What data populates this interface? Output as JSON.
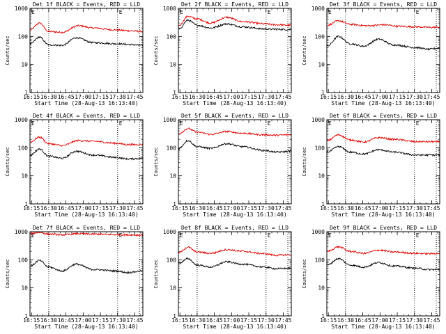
{
  "chart_data": {
    "type": "line",
    "y_scale": "log",
    "ylim": [
      1,
      1000
    ],
    "y_ticks": [
      "1",
      "10",
      "100",
      "1000"
    ],
    "x_tick_labels": [
      "16:15",
      "16:30",
      "16:45",
      "17:00",
      "17:15",
      "17:30",
      "17:45"
    ],
    "x_range": [
      "16:13:40",
      "17:52:00"
    ],
    "xlabel": "Start Time (28-Aug-13 16:13:40)",
    "ylabel": "Counts/sec",
    "marker_label": "E",
    "vertical_lines": [
      "16:30",
      "17:30",
      "17:49"
    ],
    "series_colors": {
      "events": "#000000",
      "lld": "#e00000"
    },
    "panels": [
      {
        "title": "Det 1f BLACK = Events, RED = LLD",
        "events": [
          [
            0,
            55
          ],
          [
            8,
            95
          ],
          [
            16,
            50
          ],
          [
            28,
            48
          ],
          [
            40,
            90
          ],
          [
            55,
            60
          ],
          [
            75,
            55
          ],
          [
            85,
            52
          ],
          [
            98,
            48
          ]
        ],
        "lld": [
          [
            0,
            170
          ],
          [
            8,
            300
          ],
          [
            16,
            150
          ],
          [
            28,
            140
          ],
          [
            42,
            240
          ],
          [
            55,
            200
          ],
          [
            75,
            170
          ],
          [
            85,
            160
          ],
          [
            98,
            150
          ]
        ]
      },
      {
        "title": "Det 2f BLACK = Events, RED = LLD",
        "events": [
          [
            0,
            180
          ],
          [
            8,
            380
          ],
          [
            16,
            250
          ],
          [
            28,
            200
          ],
          [
            42,
            280
          ],
          [
            55,
            220
          ],
          [
            75,
            185
          ],
          [
            85,
            180
          ],
          [
            98,
            175
          ]
        ],
        "lld": [
          [
            0,
            240
          ],
          [
            8,
            520
          ],
          [
            16,
            420
          ],
          [
            28,
            300
          ],
          [
            42,
            480
          ],
          [
            55,
            340
          ],
          [
            75,
            280
          ],
          [
            85,
            260
          ],
          [
            98,
            250
          ]
        ]
      },
      {
        "title": "Det 3f BLACK = Events, RED = LLD",
        "events": [
          [
            0,
            45
          ],
          [
            10,
            100
          ],
          [
            20,
            55
          ],
          [
            32,
            45
          ],
          [
            45,
            80
          ],
          [
            58,
            50
          ],
          [
            78,
            40
          ],
          [
            88,
            35
          ],
          [
            98,
            38
          ]
        ],
        "lld": [
          [
            0,
            250
          ],
          [
            10,
            360
          ],
          [
            20,
            270
          ],
          [
            35,
            240
          ],
          [
            50,
            260
          ],
          [
            62,
            230
          ],
          [
            78,
            220
          ],
          [
            90,
            210
          ],
          [
            98,
            215
          ]
        ]
      },
      {
        "title": "Det 4f BLACK = Events, RED = LLD",
        "events": [
          [
            0,
            55
          ],
          [
            8,
            90
          ],
          [
            16,
            50
          ],
          [
            28,
            42
          ],
          [
            40,
            75
          ],
          [
            55,
            55
          ],
          [
            75,
            45
          ],
          [
            85,
            40
          ],
          [
            98,
            42
          ]
        ],
        "lld": [
          [
            0,
            160
          ],
          [
            8,
            240
          ],
          [
            16,
            140
          ],
          [
            28,
            120
          ],
          [
            42,
            180
          ],
          [
            55,
            170
          ],
          [
            75,
            145
          ],
          [
            85,
            130
          ],
          [
            98,
            130
          ]
        ]
      },
      {
        "title": "Det 5f BLACK = Events, RED = LLD",
        "events": [
          [
            0,
            95
          ],
          [
            8,
            180
          ],
          [
            16,
            110
          ],
          [
            28,
            95
          ],
          [
            42,
            140
          ],
          [
            55,
            110
          ],
          [
            75,
            80
          ],
          [
            85,
            70
          ],
          [
            98,
            75
          ]
        ],
        "lld": [
          [
            0,
            320
          ],
          [
            8,
            480
          ],
          [
            16,
            360
          ],
          [
            28,
            300
          ],
          [
            42,
            380
          ],
          [
            55,
            330
          ],
          [
            75,
            290
          ],
          [
            85,
            280
          ],
          [
            98,
            290
          ]
        ]
      },
      {
        "title": "Det 6f BLACK = Events, RED = LLD",
        "events": [
          [
            0,
            70
          ],
          [
            10,
            110
          ],
          [
            20,
            70
          ],
          [
            32,
            60
          ],
          [
            45,
            85
          ],
          [
            58,
            70
          ],
          [
            78,
            55
          ],
          [
            88,
            55
          ],
          [
            98,
            55
          ]
        ],
        "lld": [
          [
            0,
            180
          ],
          [
            10,
            290
          ],
          [
            20,
            190
          ],
          [
            32,
            160
          ],
          [
            45,
            230
          ],
          [
            58,
            200
          ],
          [
            78,
            165
          ],
          [
            88,
            165
          ],
          [
            98,
            165
          ]
        ]
      },
      {
        "title": "Det 7f BLACK = Events, RED = LLD",
        "events": [
          [
            0,
            60
          ],
          [
            8,
            95
          ],
          [
            16,
            55
          ],
          [
            28,
            40
          ],
          [
            40,
            70
          ],
          [
            55,
            45
          ],
          [
            75,
            40
          ],
          [
            85,
            35
          ],
          [
            98,
            40
          ]
        ],
        "lld": [
          [
            0,
            850
          ],
          [
            8,
            950
          ],
          [
            16,
            820
          ],
          [
            28,
            780
          ],
          [
            42,
            850
          ],
          [
            55,
            820
          ],
          [
            75,
            790
          ],
          [
            85,
            770
          ],
          [
            98,
            760
          ]
        ]
      },
      {
        "title": "Det 8f BLACK = Events, RED = LLD",
        "events": [
          [
            0,
            75
          ],
          [
            8,
            110
          ],
          [
            16,
            65
          ],
          [
            28,
            55
          ],
          [
            42,
            85
          ],
          [
            55,
            70
          ],
          [
            75,
            55
          ],
          [
            85,
            48
          ],
          [
            98,
            50
          ]
        ],
        "lld": [
          [
            0,
            180
          ],
          [
            8,
            280
          ],
          [
            16,
            190
          ],
          [
            28,
            170
          ],
          [
            42,
            230
          ],
          [
            55,
            200
          ],
          [
            75,
            165
          ],
          [
            85,
            145
          ],
          [
            98,
            150
          ]
        ]
      },
      {
        "title": "Det 9f BLACK = Events, RED = LLD",
        "events": [
          [
            0,
            65
          ],
          [
            10,
            110
          ],
          [
            20,
            65
          ],
          [
            32,
            55
          ],
          [
            45,
            80
          ],
          [
            58,
            60
          ],
          [
            78,
            50
          ],
          [
            88,
            45
          ],
          [
            98,
            45
          ]
        ],
        "lld": [
          [
            0,
            200
          ],
          [
            10,
            290
          ],
          [
            20,
            200
          ],
          [
            32,
            170
          ],
          [
            45,
            220
          ],
          [
            58,
            190
          ],
          [
            78,
            170
          ],
          [
            88,
            165
          ],
          [
            98,
            170
          ]
        ]
      }
    ]
  }
}
